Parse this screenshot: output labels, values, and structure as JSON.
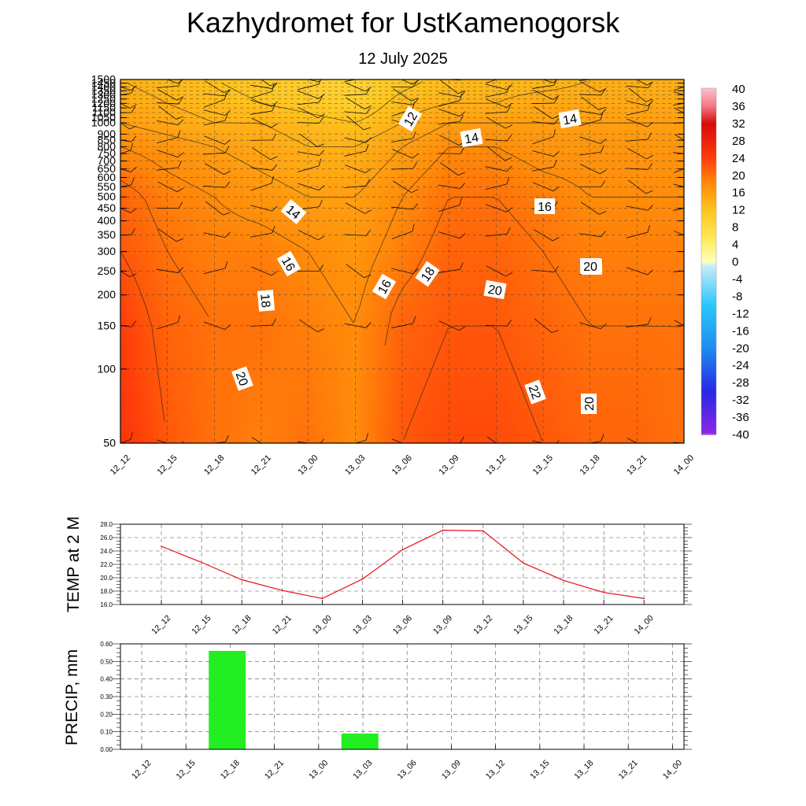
{
  "title": "Kazhydromet  for UstKamenogorsk",
  "subtitle": "12 July 2025",
  "time_labels": [
    "12_12",
    "12_15",
    "12_18",
    "12_21",
    "13_00",
    "13_03",
    "13_06",
    "13_09",
    "13_12",
    "13_15",
    "13_18",
    "13_21",
    "14_00"
  ],
  "chart_data": [
    {
      "type": "heatmap",
      "x": [
        "12_12",
        "12_15",
        "12_18",
        "12_21",
        "13_00",
        "13_03",
        "13_06",
        "13_09",
        "13_12",
        "13_15",
        "13_18",
        "13_21",
        "14_00"
      ],
      "y_ticks": [
        50,
        100,
        150,
        200,
        250,
        300,
        350,
        400,
        450,
        500,
        550,
        600,
        650,
        700,
        750,
        800,
        850,
        900,
        1000,
        1050,
        1100,
        1150,
        1200,
        1250,
        1300,
        1350,
        1400,
        1450,
        1500
      ],
      "ylim": [
        50,
        1500
      ],
      "ylog": true,
      "grid": true,
      "temperature_grid": {
        "y_levels": [
          50,
          150,
          300,
          500,
          800,
          1000,
          1200,
          1500
        ],
        "values": [
          [
            25,
            22,
            20,
            19,
            20,
            18,
            22,
            23,
            23,
            22,
            21,
            21,
            20
          ],
          [
            24,
            21,
            20,
            20,
            19,
            18,
            21,
            22,
            22,
            21,
            20,
            20,
            20
          ],
          [
            22,
            20,
            19,
            19,
            18,
            17,
            19,
            21,
            21,
            20,
            19,
            19,
            19
          ],
          [
            21,
            19,
            18,
            17,
            16,
            16,
            18,
            20,
            20,
            19,
            18,
            18,
            18
          ],
          [
            18,
            17,
            16,
            15,
            14,
            14,
            16,
            18,
            18,
            17,
            17,
            17,
            17
          ],
          [
            16,
            15,
            14,
            14,
            13,
            12,
            14,
            16,
            16,
            16,
            16,
            16,
            16
          ],
          [
            15,
            14,
            13,
            12,
            11,
            10,
            13,
            14,
            14,
            15,
            15,
            15,
            15
          ],
          [
            14,
            13,
            12,
            11,
            10,
            9,
            11,
            13,
            13,
            13,
            14,
            14,
            14
          ]
        ]
      },
      "contour_labels": [
        "12",
        "14",
        "14",
        "14",
        "16",
        "16",
        "16",
        "18",
        "18",
        "18",
        "20",
        "20",
        "20",
        "22",
        "20"
      ],
      "colorbar": {
        "ticks": [
          "40",
          "36",
          "32",
          "28",
          "24",
          "20",
          "16",
          "12",
          "8",
          "4",
          "0",
          "-4",
          "-8",
          "-12",
          "-16",
          "-20",
          "-24",
          "-28",
          "-32",
          "-36",
          "-40"
        ],
        "range": [
          -40,
          40
        ]
      }
    },
    {
      "type": "line",
      "ylabel": "TEMP at 2 M",
      "x": [
        "12_12",
        "12_15",
        "12_18",
        "12_21",
        "13_00",
        "13_03",
        "13_06",
        "13_09",
        "13_12",
        "13_15",
        "13_18",
        "13_21",
        "14_00"
      ],
      "values": [
        24.7,
        22.3,
        19.7,
        18.1,
        16.9,
        19.8,
        24.2,
        27.1,
        27.0,
        22.2,
        19.6,
        17.8,
        16.9
      ],
      "ylim": [
        16.0,
        28.0
      ],
      "y_ticks": [
        "16.0",
        "18.0",
        "20.0",
        "22.0",
        "24.0",
        "26.0",
        "28.0"
      ],
      "color": "#e8101a",
      "grid": true
    },
    {
      "type": "bar",
      "ylabel": "PRECIP, mm",
      "categories": [
        "12_12",
        "12_15",
        "12_18",
        "12_21",
        "13_00",
        "13_03",
        "13_06",
        "13_09",
        "13_12",
        "13_15",
        "13_18",
        "13_21",
        "14_00"
      ],
      "values": [
        0.0,
        0.56,
        0.0,
        0.0,
        0.09,
        0.0,
        0.0,
        0.0,
        0.0,
        0.0,
        0.0,
        0.0,
        0.0
      ],
      "ylim": [
        0.0,
        0.6
      ],
      "y_ticks": [
        "0.00",
        "0.10",
        "0.20",
        "0.30",
        "0.40",
        "0.50",
        "0.60"
      ],
      "color": "#22ee22",
      "grid": true
    }
  ]
}
